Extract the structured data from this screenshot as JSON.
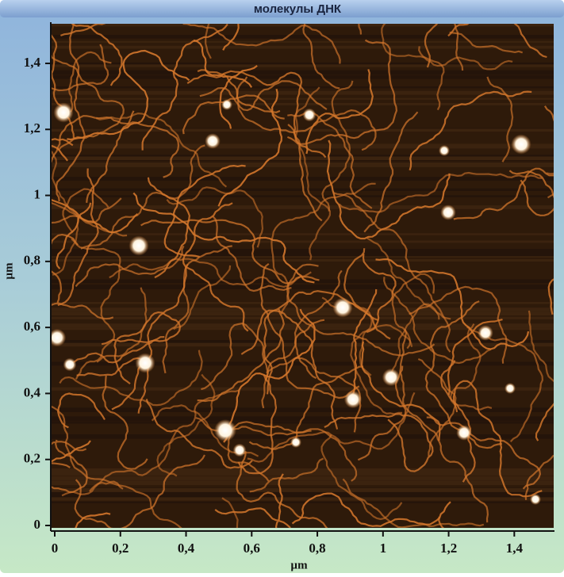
{
  "chart_data": {
    "type": "image",
    "title": "молекулы ДНК",
    "xlabel": "µm",
    "ylabel": "µm",
    "xlim": [
      0,
      1.52
    ],
    "ylim": [
      0,
      1.52
    ],
    "xticks": [
      0,
      {
        "value": 0.2,
        "label": "0,2"
      },
      {
        "value": 0.4,
        "label": "0,4"
      },
      {
        "value": 0.6,
        "label": "0,6"
      },
      {
        "value": 0.8,
        "label": "0,8"
      },
      1,
      {
        "value": 1.2,
        "label": "1,2"
      },
      {
        "value": 1.4,
        "label": "1,4"
      }
    ],
    "yticks": [
      0,
      {
        "value": 0.2,
        "label": "0,2"
      },
      {
        "value": 0.4,
        "label": "0,4"
      },
      {
        "value": 0.6,
        "label": "0,6"
      },
      {
        "value": 0.8,
        "label": "0,8"
      },
      1,
      {
        "value": 1.2,
        "label": "1,2"
      },
      {
        "value": 1.4,
        "label": "1,4"
      }
    ]
  }
}
